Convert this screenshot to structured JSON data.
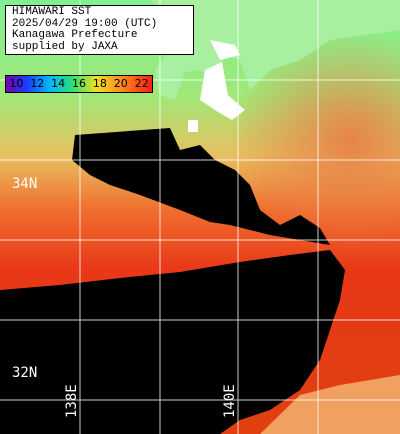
{
  "header": {
    "lines": [
      "HIMAWARI SST",
      "2025/04/29 19:00 (UTC)",
      "Kanagawa Prefecture",
      "supplied by JAXA"
    ]
  },
  "legend": {
    "labels": [
      10,
      12,
      14,
      16,
      18,
      20,
      22
    ]
  },
  "grid_labels": {
    "latitudes": [
      "34N",
      "32N"
    ],
    "longitudes": [
      "138E",
      "140E"
    ]
  }
}
